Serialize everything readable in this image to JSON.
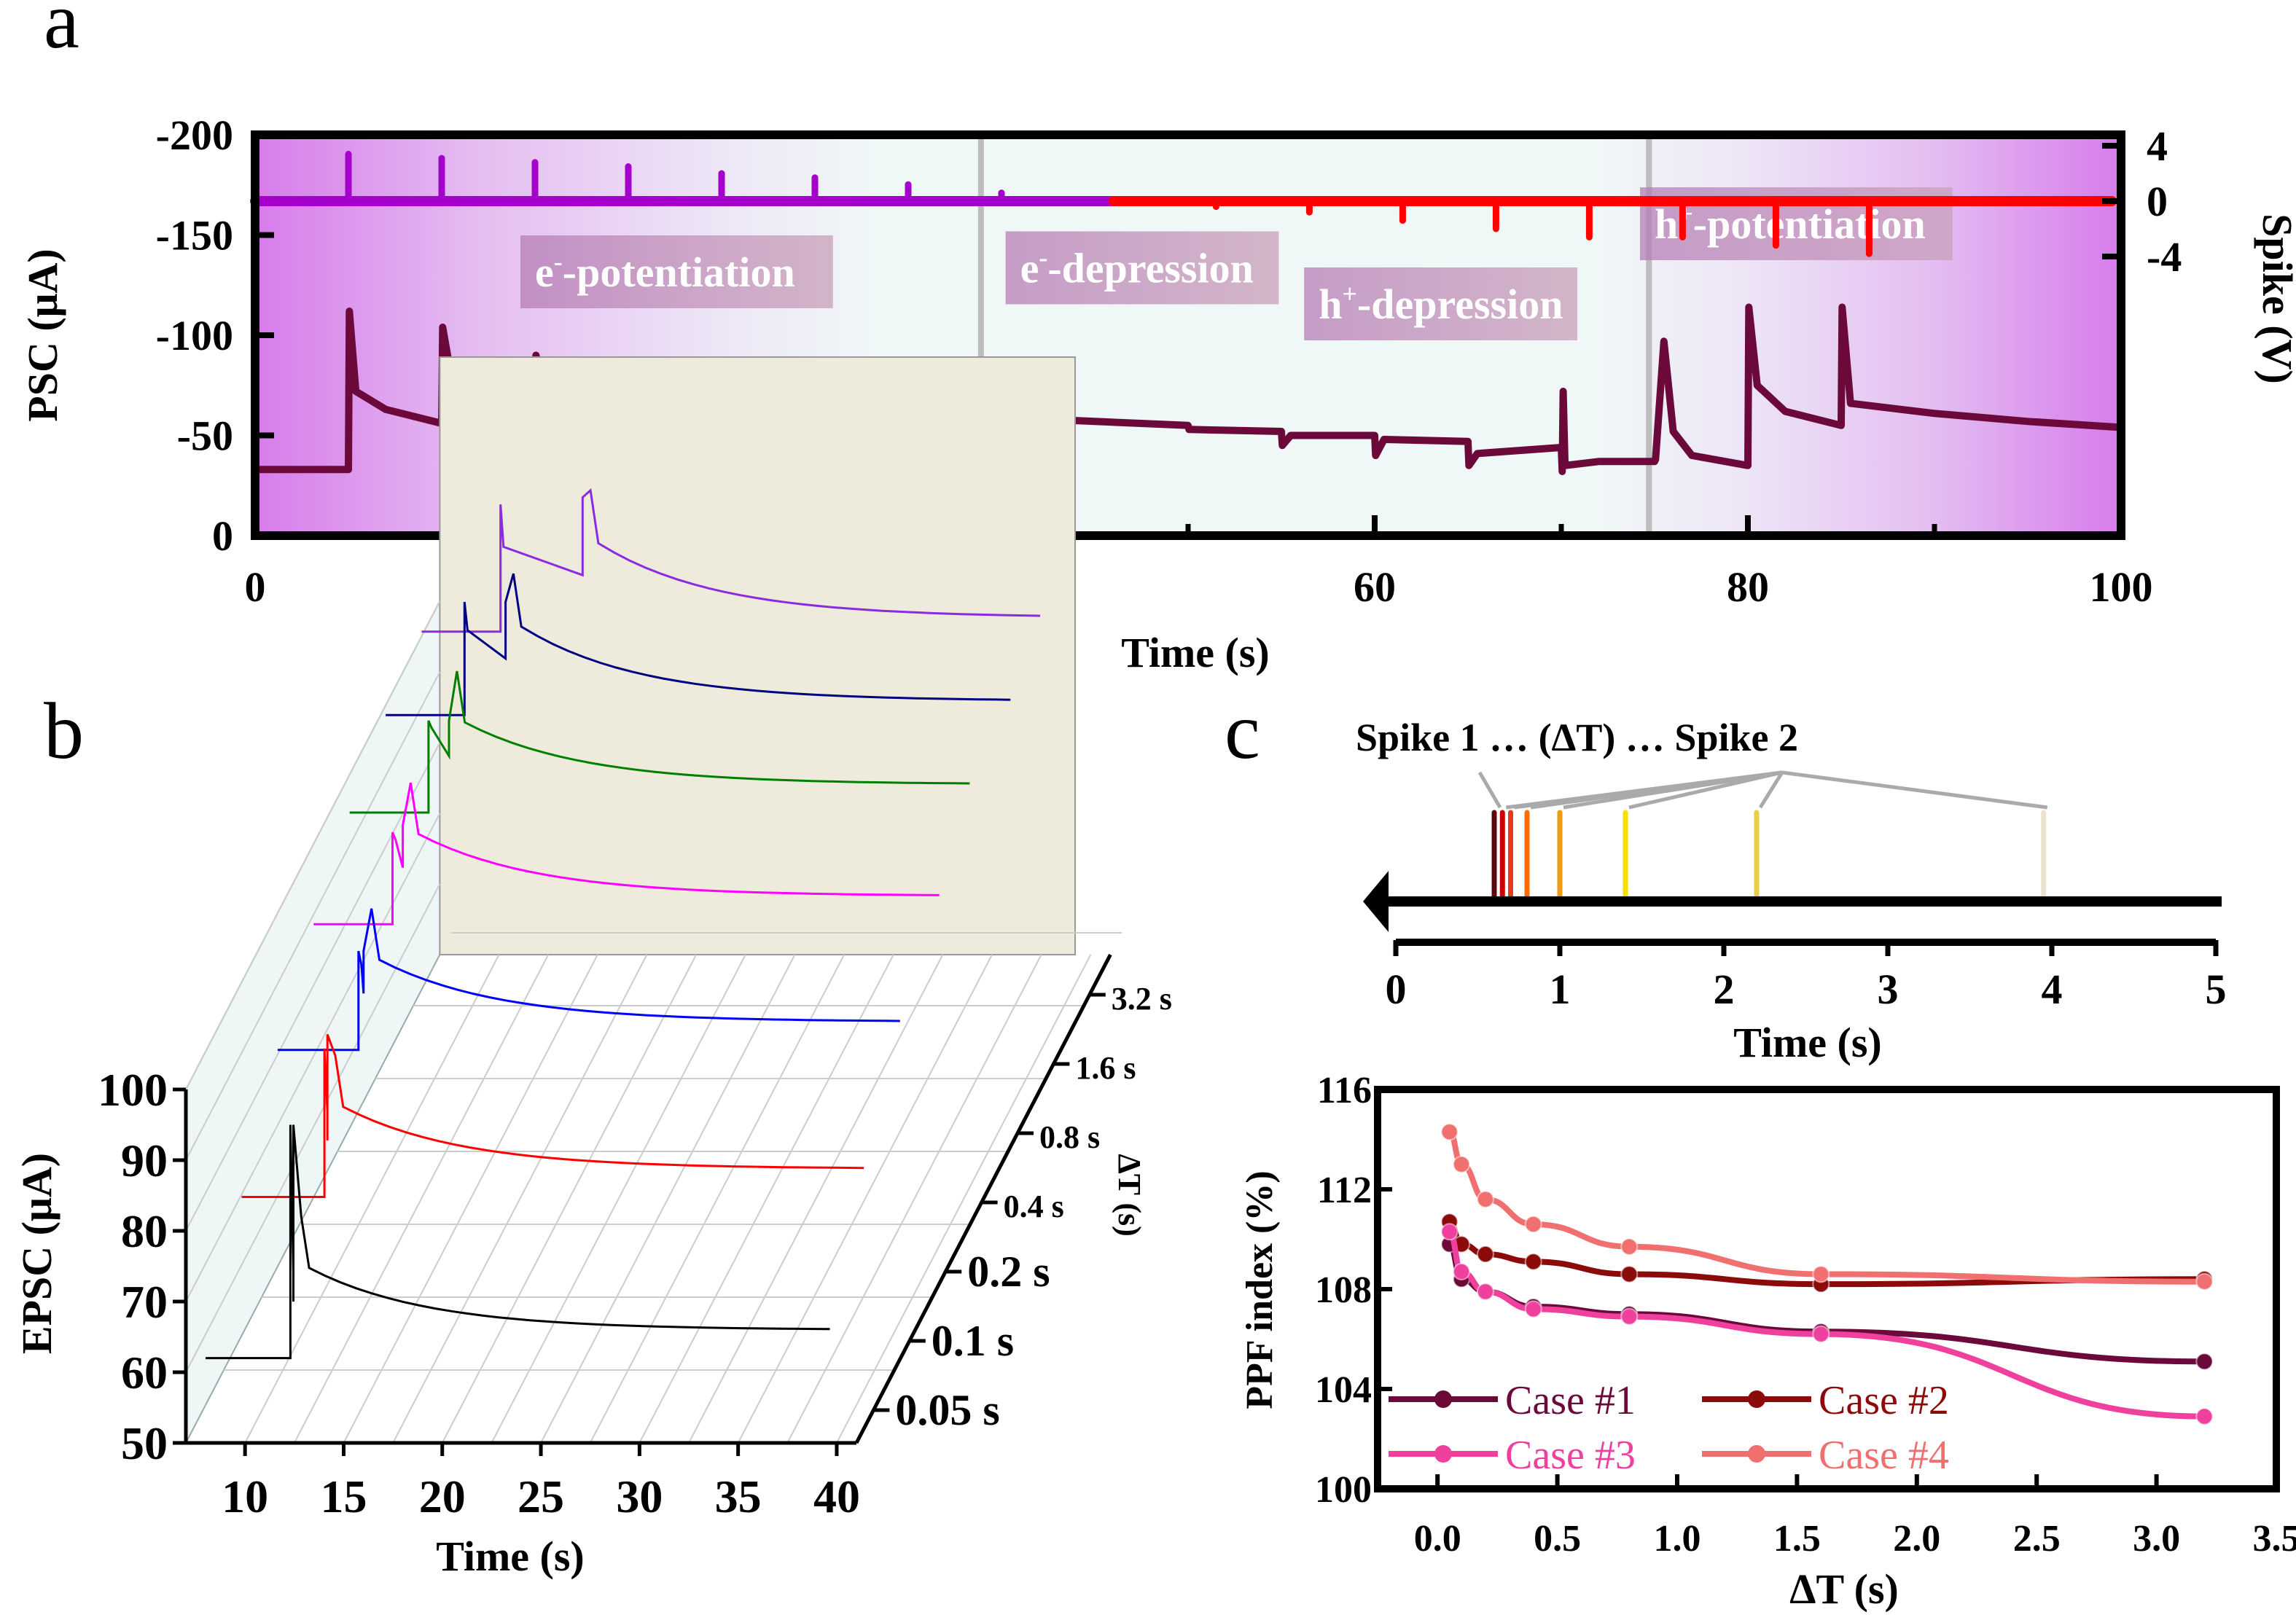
{
  "panel_labels": {
    "a": "a",
    "b": "b",
    "c": "c"
  },
  "chart_data": [
    {
      "id": "a",
      "type": "line",
      "xlabel": "Time (s)",
      "ylabel": "PSC (μA)",
      "ylabel_right": "Spike (V)",
      "xlim": [
        0,
        100
      ],
      "ylim": [
        0,
        -200
      ],
      "ylim_right": [
        -4,
        4
      ],
      "xticks": [
        "0",
        "20",
        "40",
        "60",
        "80",
        "100"
      ],
      "xtick_values": [
        0,
        20,
        40,
        60,
        80,
        100
      ],
      "yticks": [
        "0",
        "-50",
        "-100",
        "-150",
        "-200"
      ],
      "ytick_values": [
        0,
        -50,
        -100,
        -150,
        -200
      ],
      "yticks_right": [
        "4",
        "0",
        "-4"
      ],
      "ytick_right_values": [
        4,
        0,
        -4
      ],
      "dividers": [
        38.9,
        74.7
      ],
      "region_labels": [
        {
          "base": "e",
          "sup": "-",
          "rest": "-potentiation",
          "x": 15,
          "y": -128
        },
        {
          "base": "e",
          "sup": "-",
          "rest": "-depression",
          "x": 41,
          "y": -130
        },
        {
          "base": "h",
          "sup": "+",
          "rest": "-depression",
          "x": 57,
          "y": -112
        },
        {
          "base": "h",
          "sup": "+",
          "rest": "-potentiation",
          "x": 75,
          "y": -152
        }
      ],
      "spike_series": {
        "name": "Spike",
        "baseline": 0,
        "positive_spikes": {
          "color": "#A600CC",
          "times": [
            5,
            10,
            15,
            20,
            25,
            30,
            35,
            40
          ],
          "amplitudes": [
            3.4,
            3.1,
            2.8,
            2.5,
            2.0,
            1.7,
            1.2,
            0.6
          ]
        },
        "negative_spikes": {
          "color": "#FF0000",
          "times": [
            50,
            55,
            60,
            65,
            70,
            75,
            80,
            85
          ],
          "amplitudes": [
            -0.4,
            -0.8,
            -1.4,
            -2.0,
            -2.6,
            -2.6,
            -3.2,
            -3.8
          ]
        },
        "color_switch_time": 46
      },
      "psc_series": {
        "name": "PSC",
        "color": "#6B0A3A",
        "points": [
          [
            0,
            -33
          ],
          [
            5,
            -33
          ],
          [
            5.05,
            -112
          ],
          [
            5.4,
            -72
          ],
          [
            7,
            -63
          ],
          [
            10,
            -56
          ],
          [
            10.05,
            -104
          ],
          [
            10.5,
            -80
          ],
          [
            12,
            -70
          ],
          [
            15,
            -64
          ],
          [
            15.05,
            -90
          ],
          [
            15.5,
            -73
          ],
          [
            18,
            -66
          ],
          [
            20,
            -63
          ],
          [
            20.05,
            -84
          ],
          [
            20.5,
            -70
          ],
          [
            25,
            -63
          ],
          [
            25.05,
            -75
          ],
          [
            25.5,
            -66
          ],
          [
            30,
            -61
          ],
          [
            30.05,
            -70
          ],
          [
            30.5,
            -63
          ],
          [
            35,
            -59
          ],
          [
            35.05,
            -63
          ],
          [
            35.5,
            -60
          ],
          [
            40,
            -58
          ],
          [
            40.05,
            -59
          ],
          [
            45,
            -57
          ],
          [
            50,
            -55
          ],
          [
            50.05,
            -53
          ],
          [
            55,
            -52
          ],
          [
            55.05,
            -45
          ],
          [
            55.5,
            -50
          ],
          [
            60,
            -50
          ],
          [
            60.05,
            -40
          ],
          [
            60.5,
            -48
          ],
          [
            65,
            -47
          ],
          [
            65.05,
            -35
          ],
          [
            65.5,
            -41
          ],
          [
            70,
            -44
          ],
          [
            70.05,
            -32
          ],
          [
            70.1,
            -72
          ],
          [
            70.2,
            -35
          ],
          [
            72,
            -37
          ],
          [
            75,
            -37
          ],
          [
            75.05,
            -38
          ],
          [
            75.5,
            -97
          ],
          [
            76,
            -52
          ],
          [
            77,
            -40
          ],
          [
            80,
            -35
          ],
          [
            80.05,
            -114
          ],
          [
            80.5,
            -75
          ],
          [
            82,
            -62
          ],
          [
            85,
            -55
          ],
          [
            85.05,
            -114
          ],
          [
            85.5,
            -66
          ],
          [
            90,
            -61
          ],
          [
            95,
            -57
          ],
          [
            100,
            -54
          ]
        ]
      }
    },
    {
      "id": "b",
      "type": "line",
      "subtype": "3d-waterfall",
      "xlabel": "Time (s)",
      "ylabel": "EPSC (μA)",
      "zlabel": "ΔT (s)",
      "xlim": [
        7,
        41
      ],
      "ylim": [
        50,
        100
      ],
      "xticks": [
        "10",
        "15",
        "20",
        "25",
        "30",
        "35",
        "40"
      ],
      "xtick_values": [
        10,
        15,
        20,
        25,
        30,
        35,
        40
      ],
      "yticks": [
        "50",
        "60",
        "70",
        "80",
        "90",
        "100"
      ],
      "ytick_values": [
        50,
        60,
        70,
        80,
        90,
        100
      ],
      "zticks": [
        "0.05 s",
        "0.1 s",
        "0.2 s",
        "0.4 s",
        "0.8 s",
        "1.6 s",
        "3.2 s"
      ],
      "series": [
        {
          "name": "0.05 s",
          "color": "#000000",
          "t0": 8,
          "t1": 12.3,
          "dt": 0.05,
          "base": 62,
          "peak1": 95,
          "peak2": 95,
          "tail": 66
        },
        {
          "name": "0.1 s",
          "color": "#FF0000",
          "t0": 8,
          "t1": 12.2,
          "dt": 0.1,
          "base": 75,
          "peak1": 96,
          "peak2": 98,
          "tail": 79
        },
        {
          "name": "0.2 s",
          "color": "#0000FF",
          "t0": 8,
          "t1": 12.1,
          "dt": 0.2,
          "base": 86,
          "peak1": 100,
          "peak2": 100,
          "tail": 90
        },
        {
          "name": "0.4 s",
          "color": "#FF00FF",
          "t0": 8,
          "t1": 12.0,
          "dt": 0.4,
          "base": 94,
          "peak1": 107,
          "peak2": 108,
          "tail": 98
        },
        {
          "name": "0.8 s",
          "color": "#008000",
          "t0": 8,
          "t1": 12.0,
          "dt": 0.8,
          "base": 100,
          "peak1": 113,
          "peak2": 113,
          "tail": 104
        },
        {
          "name": "1.6 s",
          "color": "#000080",
          "t0": 8,
          "t1": 12.0,
          "dt": 1.6,
          "base": 104,
          "peak1": 120,
          "peak2": 120,
          "tail": 106
        },
        {
          "name": "3.2 s",
          "color": "#8A2BE2",
          "t0": 8,
          "t1": 12.0,
          "dt": 3.2,
          "base": 106,
          "peak1": 124,
          "peak2": 125,
          "tail": 108
        }
      ]
    },
    {
      "id": "c-top",
      "type": "scatter",
      "subtype": "spike-timeline",
      "title": "Spike 1 … (ΔT) … Spike 2",
      "xlabel": "Time (s)",
      "xlim": [
        0,
        5
      ],
      "xticks": [
        "0",
        "1",
        "2",
        "3",
        "4",
        "5"
      ],
      "xtick_values": [
        0,
        1,
        2,
        3,
        4,
        5
      ],
      "spike1_time": 0.6,
      "spike2_times": [
        0.65,
        0.7,
        0.8,
        1.0,
        1.4,
        2.2,
        3.95
      ],
      "spike_colors": [
        "#5A0A0A",
        "#CC0000",
        "#E63A1E",
        "#FF6A00",
        "#F09A10",
        "#F5E000",
        "#E8D040",
        "#EDE3CC"
      ]
    },
    {
      "id": "c-bottom",
      "type": "line",
      "xlabel": "ΔT (s)",
      "ylabel": "PPF index (%)",
      "xlim": [
        -0.25,
        3.5
      ],
      "ylim": [
        100,
        116
      ],
      "xticks": [
        "0.0",
        "0.5",
        "1.0",
        "1.5",
        "2.0",
        "2.5",
        "3.0",
        "3.5"
      ],
      "xtick_values": [
        0,
        0.5,
        1.0,
        1.5,
        2.0,
        2.5,
        3.0,
        3.5
      ],
      "yticks": [
        "100",
        "104",
        "108",
        "112",
        "116"
      ],
      "ytick_values": [
        100,
        104,
        108,
        112,
        116
      ],
      "legend_position": "bottom-left",
      "x": [
        0.05,
        0.1,
        0.2,
        0.4,
        0.8,
        1.6,
        3.2
      ],
      "series": [
        {
          "name": "Case #1",
          "color": "#6B0A3A",
          "values": [
            109.8,
            108.4,
            107.9,
            107.3,
            107.0,
            106.3,
            105.1
          ]
        },
        {
          "name": "Case #2",
          "color": "#8B0A0A",
          "values": [
            110.7,
            109.8,
            109.4,
            109.1,
            108.6,
            108.2,
            108.4
          ]
        },
        {
          "name": "Case #3",
          "color": "#F0409E",
          "values": [
            110.3,
            108.7,
            107.9,
            107.2,
            106.9,
            106.2,
            102.9
          ]
        },
        {
          "name": "Case #4",
          "color": "#F07070",
          "values": [
            114.3,
            113.0,
            111.6,
            110.6,
            109.7,
            108.6,
            108.3
          ]
        }
      ]
    }
  ]
}
